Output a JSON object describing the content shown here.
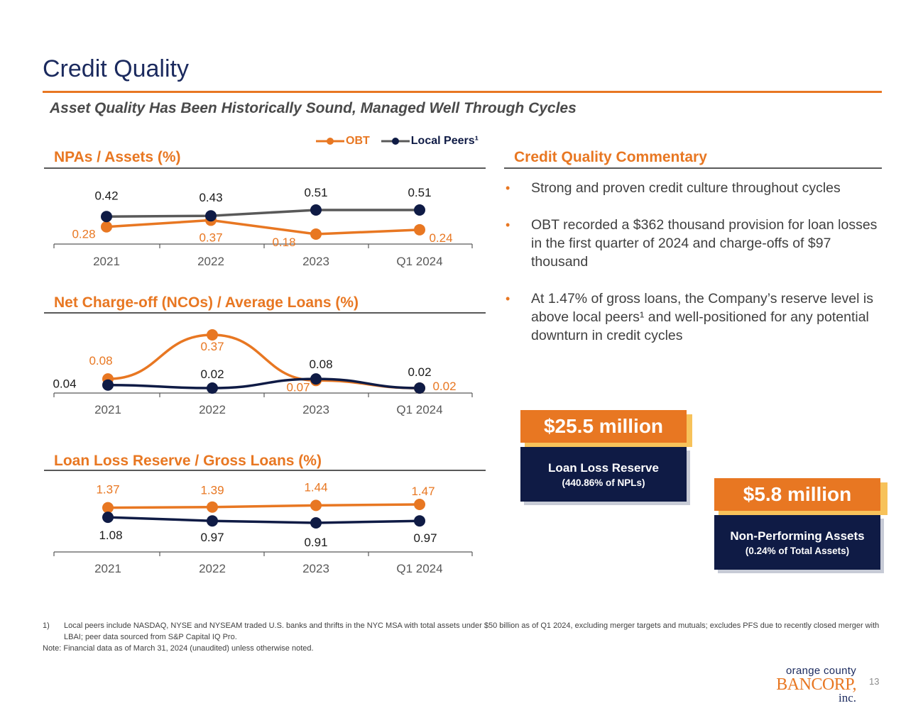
{
  "title": "Credit Quality",
  "subtitle": "Asset Quality Has Been Historically Sound, Managed Well Through Cycles",
  "legend": {
    "obt": "OBT",
    "peers": "Local Peers¹"
  },
  "colors": {
    "obt": "#e87722",
    "peers_marker": "#0f1b45",
    "peers_line_npa": "#595959",
    "peers_line": "#0f1b45",
    "navy": "#0f1b45",
    "orange": "#e87722"
  },
  "chart_data": [
    {
      "type": "line",
      "title": "NPAs / Assets (%)",
      "categories": [
        "2021",
        "2022",
        "2023",
        "Q1 2024"
      ],
      "series": [
        {
          "name": "OBT",
          "values": [
            0.28,
            0.37,
            0.18,
            0.24
          ]
        },
        {
          "name": "Local Peers¹",
          "values": [
            0.42,
            0.43,
            0.51,
            0.51
          ]
        }
      ],
      "xlabel": "",
      "ylabel": ""
    },
    {
      "type": "line",
      "title": "Net Charge-off (NCOs) / Average Loans (%)",
      "categories": [
        "2021",
        "2022",
        "2023",
        "Q1 2024"
      ],
      "series": [
        {
          "name": "OBT",
          "values": [
            0.08,
            0.37,
            0.07,
            0.02
          ]
        },
        {
          "name": "Local Peers¹",
          "values": [
            0.04,
            0.02,
            0.08,
            0.02
          ]
        }
      ],
      "xlabel": "",
      "ylabel": ""
    },
    {
      "type": "line",
      "title": "Loan Loss Reserve / Gross Loans (%)",
      "categories": [
        "2021",
        "2022",
        "2023",
        "Q1 2024"
      ],
      "series": [
        {
          "name": "OBT",
          "values": [
            1.37,
            1.39,
            1.44,
            1.47
          ]
        },
        {
          "name": "Local Peers¹",
          "values": [
            1.08,
            0.97,
            0.91,
            0.97
          ]
        }
      ],
      "xlabel": "",
      "ylabel": ""
    }
  ],
  "commentary": {
    "title": "Credit Quality Commentary",
    "bullets": [
      "Strong and proven credit culture throughout cycles",
      "OBT recorded a $362 thousand provision for loan losses in the first quarter of 2024 and charge-offs of $97 thousand",
      "At 1.47% of gross loans, the Company’s reserve level is above local peers¹ and well-positioned for any potential downturn in credit cycles"
    ]
  },
  "callouts": {
    "reserve": {
      "amount": "$25.5 million",
      "label": "Loan Loss Reserve",
      "sub": "(440.86% of NPLs)"
    },
    "npa": {
      "amount": "$5.8 million",
      "label": "Non-Performing Assets",
      "sub": "(0.24% of Total Assets)"
    }
  },
  "footnotes": {
    "n1_num": "1)",
    "n1_text": "Local peers include NASDAQ, NYSE and NYSEAM traded U.S. banks and thrifts in the NYC MSA with total assets under $50 billion as of Q1 2024, excluding merger targets and mutuals; excludes PFS due to recently closed merger with LBAI; peer data sourced from S&P Capital IQ Pro.",
    "note": "Note: Financial data as of March 31, 2024 (unaudited) unless otherwise noted."
  },
  "logo": {
    "line1": "orange county",
    "line2": "BANCORP,",
    "line3": "inc."
  },
  "page_number": "13"
}
